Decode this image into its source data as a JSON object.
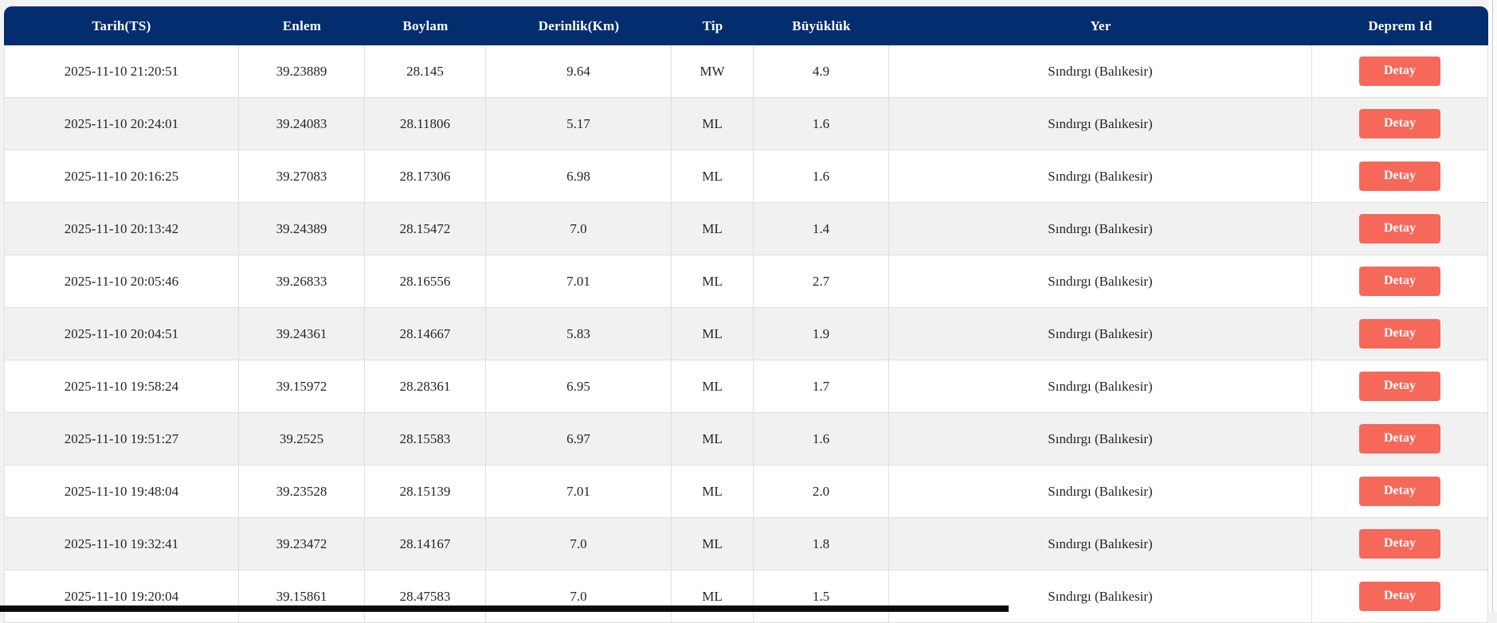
{
  "table": {
    "columns": [
      {
        "key": "tarih",
        "label": "Tarih(TS)"
      },
      {
        "key": "enlem",
        "label": "Enlem"
      },
      {
        "key": "boylam",
        "label": "Boylam"
      },
      {
        "key": "derinlik",
        "label": "Derinlik(Km)"
      },
      {
        "key": "tip",
        "label": "Tip"
      },
      {
        "key": "buyukluk",
        "label": "Büyüklük"
      },
      {
        "key": "yer",
        "label": "Yer"
      },
      {
        "key": "deprem_id",
        "label": "Deprem Id"
      }
    ],
    "detail_button_label": "Detay",
    "rows": [
      {
        "tarih": "2025-11-10 21:20:51",
        "enlem": "39.23889",
        "boylam": "28.145",
        "derinlik": "9.64",
        "tip": "MW",
        "buyukluk": "4.9",
        "yer": "Sındırgı (Balıkesir)"
      },
      {
        "tarih": "2025-11-10 20:24:01",
        "enlem": "39.24083",
        "boylam": "28.11806",
        "derinlik": "5.17",
        "tip": "ML",
        "buyukluk": "1.6",
        "yer": "Sındırgı (Balıkesir)"
      },
      {
        "tarih": "2025-11-10 20:16:25",
        "enlem": "39.27083",
        "boylam": "28.17306",
        "derinlik": "6.98",
        "tip": "ML",
        "buyukluk": "1.6",
        "yer": "Sındırgı (Balıkesir)"
      },
      {
        "tarih": "2025-11-10 20:13:42",
        "enlem": "39.24389",
        "boylam": "28.15472",
        "derinlik": "7.0",
        "tip": "ML",
        "buyukluk": "1.4",
        "yer": "Sındırgı (Balıkesir)"
      },
      {
        "tarih": "2025-11-10 20:05:46",
        "enlem": "39.26833",
        "boylam": "28.16556",
        "derinlik": "7.01",
        "tip": "ML",
        "buyukluk": "2.7",
        "yer": "Sındırgı (Balıkesir)"
      },
      {
        "tarih": "2025-11-10 20:04:51",
        "enlem": "39.24361",
        "boylam": "28.14667",
        "derinlik": "5.83",
        "tip": "ML",
        "buyukluk": "1.9",
        "yer": "Sındırgı (Balıkesir)"
      },
      {
        "tarih": "2025-11-10 19:58:24",
        "enlem": "39.15972",
        "boylam": "28.28361",
        "derinlik": "6.95",
        "tip": "ML",
        "buyukluk": "1.7",
        "yer": "Sındırgı (Balıkesir)"
      },
      {
        "tarih": "2025-11-10 19:51:27",
        "enlem": "39.2525",
        "boylam": "28.15583",
        "derinlik": "6.97",
        "tip": "ML",
        "buyukluk": "1.6",
        "yer": "Sındırgı (Balıkesir)"
      },
      {
        "tarih": "2025-11-10 19:48:04",
        "enlem": "39.23528",
        "boylam": "28.15139",
        "derinlik": "7.01",
        "tip": "ML",
        "buyukluk": "2.0",
        "yer": "Sındırgı (Balıkesir)"
      },
      {
        "tarih": "2025-11-10 19:32:41",
        "enlem": "39.23472",
        "boylam": "28.14167",
        "derinlik": "7.0",
        "tip": "ML",
        "buyukluk": "1.8",
        "yer": "Sındırgı (Balıkesir)"
      },
      {
        "tarih": "2025-11-10 19:20:04",
        "enlem": "39.15861",
        "boylam": "28.47583",
        "derinlik": "7.0",
        "tip": "ML",
        "buyukluk": "1.5",
        "yer": "Sındırgı (Balıkesir)"
      }
    ]
  },
  "colors": {
    "header_bg": "#032d6e",
    "button_bg": "#f6685a",
    "stripe_bg": "#f1f1f1",
    "border": "#dfdfdf"
  }
}
